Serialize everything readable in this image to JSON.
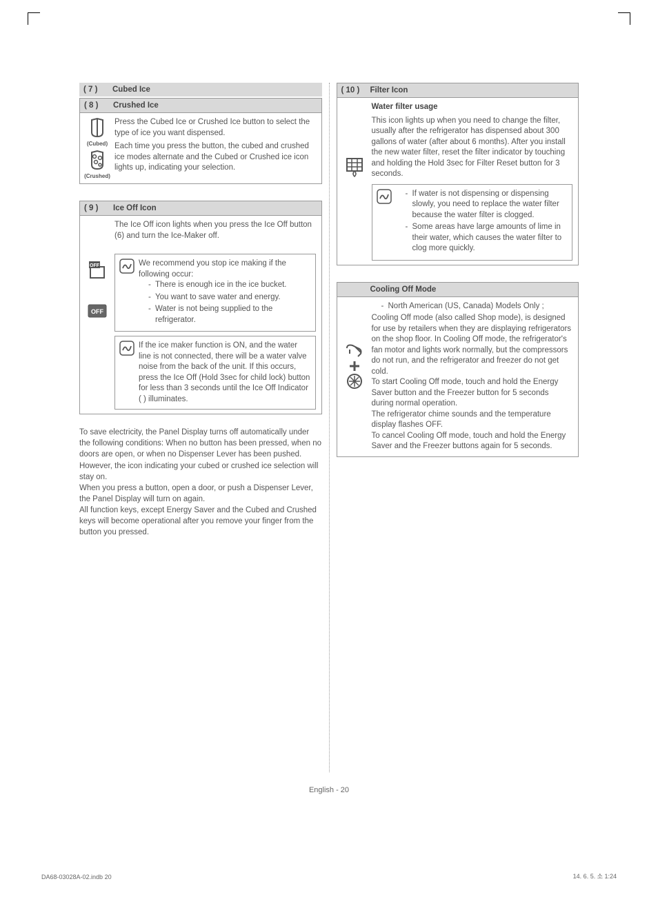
{
  "left": {
    "s7": {
      "num": "( 7 )",
      "title": "Cubed Ice"
    },
    "s8": {
      "num": "( 8 )",
      "title": "Crushed Ice",
      "p1": "Press the Cubed Ice or Crushed Ice button to select the type of ice you want dispensed.",
      "p2": "Each time you press the button, the cubed and crushed ice modes alternate and the Cubed or Crushed ice icon lights up, indicating your selection.",
      "cubed_label": "(Cubed)",
      "crushed_label": "(Crushed)"
    },
    "s9": {
      "num": "( 9 )",
      "title": "Ice Off Icon",
      "intro": "The Ice Off icon lights when you press the Ice Off button (6) and turn the Ice-Maker off.",
      "note1_lead": "We recommend you stop ice making if the following occur:",
      "note1_items": [
        "There is enough ice in the ice bucket.",
        "You want to save water and energy.",
        "Water is not being supplied to the refrigerator."
      ],
      "note2": "If the ice maker function is ON, and the water line is not connected, there will be a water valve noise from the back of the unit. If this occurs, press the Ice Off (Hold 3sec for child lock) button for less than 3 seconds until the Ice Off Indicator (       ) illuminates."
    },
    "para": "To save electricity, the Panel Display turns off automatically under the following conditions: When no button has been pressed, when no doors are open, or when no Dispenser Lever has been pushed.\nHowever, the icon indicating your cubed or crushed ice selection will stay on.\nWhen you press a button, open a door, or push a Dispenser Lever, the Panel Display will turn on again.\nAll function keys, except Energy Saver and the Cubed and Crushed keys will become operational after you remove your finger from the button you pressed."
  },
  "right": {
    "s10": {
      "num": "( 10 )",
      "title": "Filter Icon",
      "subtitle": "Water filter usage",
      "body": "This icon lights up when you need to change the filter, usually after the refrigerator has dispensed about 300 gallons of water (after about 6 months). After you install the new water filter, reset the filter indicator by touching and holding the Hold 3sec for Filter Reset button for 3 seconds.",
      "note_items": [
        "If water is not dispensing or dispensing slowly, you need to replace the water filter because the water filter is clogged.",
        "Some areas have large amounts of lime in their water, which causes the water filter to clog more quickly."
      ]
    },
    "cooling": {
      "title": "Cooling Off Mode",
      "lead": "North American (US, Canada) Models Only ;",
      "body": "Cooling Off mode (also called Shop mode), is designed for use by retailers when they are displaying refrigerators on the shop floor. In Cooling Off mode, the refrigerator's fan motor and lights work normally, but the compressors do not run, and the refrigerator and freezer do not get cold.\nTo start Cooling Off mode, touch and hold the Energy Saver button and the Freezer button for 5 seconds during normal operation.\nThe refrigerator chime sounds and the temperature display flashes OFF.\nTo cancel Cooling Off mode, touch and hold the Energy Saver and the Freezer buttons again for 5 seconds."
    }
  },
  "footer": {
    "page": "English - 20",
    "file": "DA68-03028A-02.indb   20",
    "time": "14. 6. 5.   소 1:24"
  }
}
